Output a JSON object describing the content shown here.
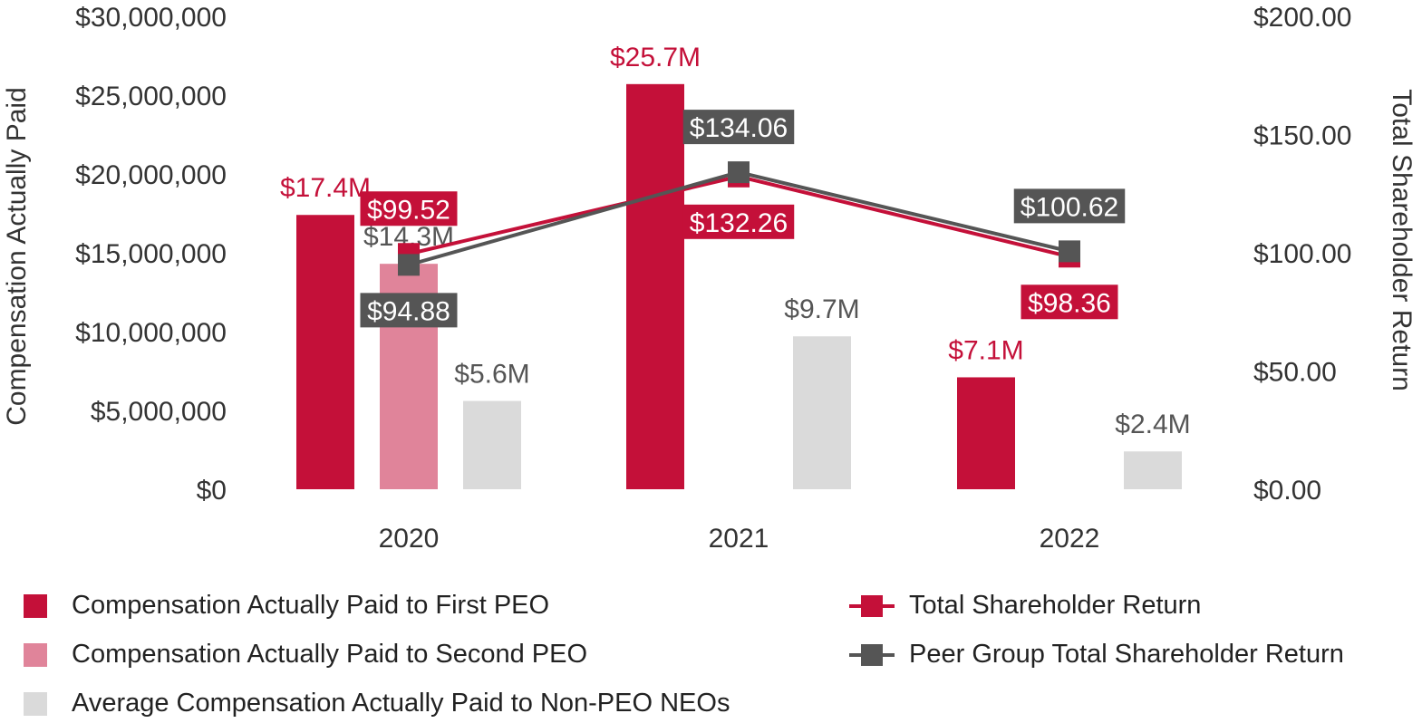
{
  "chart_data": {
    "type": "bar+line",
    "categories": [
      "2020",
      "2021",
      "2022"
    ],
    "left_axis": {
      "label": "Compensation Actually Paid",
      "ylim": [
        0,
        30000000
      ],
      "ticks": [
        0,
        5000000,
        10000000,
        15000000,
        20000000,
        25000000,
        30000000
      ],
      "tick_labels": [
        "$0",
        "$5,000,000",
        "$10,000,000",
        "$15,000,000",
        "$20,000,000",
        "$25,000,000",
        "$30,000,000"
      ]
    },
    "right_axis": {
      "label": "Total Shareholder Return",
      "ylim": [
        0,
        200
      ],
      "ticks": [
        0,
        50,
        100,
        150,
        200
      ],
      "tick_labels": [
        "$0.00",
        "$50.00",
        "$100.00",
        "$150.00",
        "$200.00"
      ]
    },
    "bar_series": [
      {
        "name": "Compensation Actually Paid to First PEO",
        "color": "#C41039",
        "label_color": "#C41039",
        "values": [
          17400000,
          25700000,
          7100000
        ],
        "labels": [
          "$17.4M",
          "$25.7M",
          "$7.1M"
        ]
      },
      {
        "name": "Compensation Actually Paid to Second PEO",
        "color": "#E0849A",
        "label_color": "#555555",
        "values": [
          14300000,
          null,
          null
        ],
        "labels": [
          "$14.3M",
          null,
          null
        ]
      },
      {
        "name": "Average Compensation Actually Paid to Non-PEO NEOs",
        "color": "#DADADA",
        "label_color": "#555555",
        "values": [
          5600000,
          9700000,
          2400000
        ],
        "labels": [
          "$5.6M",
          "$9.7M",
          "$2.4M"
        ]
      }
    ],
    "line_series": [
      {
        "name": "Total Shareholder Return",
        "color": "#C41039",
        "values": [
          99.52,
          132.26,
          98.36
        ],
        "labels": [
          "$99.52",
          "$132.26",
          "$98.36"
        ],
        "label_positions": [
          "above",
          "below",
          "below"
        ]
      },
      {
        "name": "Peer Group Total Shareholder Return",
        "color": "#555555",
        "values": [
          94.88,
          134.06,
          100.62
        ],
        "labels": [
          "$94.88",
          "$134.06",
          "$100.62"
        ],
        "label_positions": [
          "below",
          "above",
          "above"
        ]
      }
    ],
    "legend": [
      {
        "label": "Compensation Actually Paid to First PEO",
        "kind": "bar",
        "color": "#C41039"
      },
      {
        "label": "Compensation Actually Paid to Second PEO",
        "kind": "bar",
        "color": "#E0849A"
      },
      {
        "label": "Average Compensation Actually Paid to Non-PEO NEOs",
        "kind": "bar",
        "color": "#DADADA"
      },
      {
        "label": "Total Shareholder Return",
        "kind": "line",
        "color": "#C41039"
      },
      {
        "label": "Peer Group Total Shareholder Return",
        "kind": "line",
        "color": "#555555"
      }
    ]
  }
}
